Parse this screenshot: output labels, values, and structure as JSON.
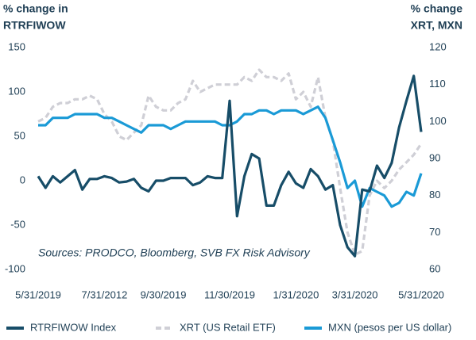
{
  "chart_data": {
    "type": "line",
    "y_label": [
      "% change in",
      "RTRFIWOW"
    ],
    "y2_label": [
      "% change",
      "XRT, MXN"
    ],
    "annotation": "Sources: PRODCO, Bloomberg, SVB FX Risk Advisory",
    "categories": [
      "5/31/2019",
      null,
      null,
      null,
      null,
      null,
      null,
      null,
      null,
      "7/31/2012",
      null,
      null,
      null,
      null,
      null,
      null,
      null,
      "9/30/2019",
      null,
      null,
      null,
      null,
      null,
      null,
      null,
      null,
      "11/30/2019",
      null,
      null,
      null,
      null,
      null,
      null,
      null,
      null,
      "1/31/2020",
      null,
      null,
      null,
      null,
      null,
      null,
      null,
      "3/31/2020",
      null,
      null,
      null,
      null,
      null,
      null,
      null,
      null,
      "5/31/2020"
    ],
    "ylim": [
      -100,
      150
    ],
    "yticks": [
      150,
      100,
      50,
      0,
      -50,
      -100
    ],
    "y2lim": [
      60,
      120
    ],
    "y2ticks": [
      120,
      110,
      100,
      90,
      80,
      70,
      60
    ],
    "series": [
      {
        "name": "RTRFIWOW Index",
        "color": "#174d68",
        "dash": false,
        "values": [
          5,
          -8,
          5,
          -2,
          5,
          12,
          -10,
          2,
          2,
          5,
          3,
          -2,
          -1,
          2,
          -8,
          -12,
          0,
          0,
          3,
          3,
          3,
          -5,
          -2,
          5,
          3,
          3,
          90,
          -40,
          5,
          30,
          25,
          -28,
          -28,
          -5,
          10,
          -3,
          -8,
          13,
          5,
          -10,
          -5,
          -50,
          -75,
          -85,
          -10,
          -12,
          17,
          3,
          20,
          60,
          90,
          118,
          55
        ]
      },
      {
        "name": "XRT (US Retail ETF)",
        "color": "#cfcfd6",
        "dash": true,
        "axis": "y2",
        "values": [
          100,
          101,
          104,
          105,
          105,
          106,
          106,
          107,
          106,
          102,
          100,
          96,
          95,
          97,
          99,
          107,
          104,
          103,
          103,
          105,
          106,
          111,
          108,
          109,
          110,
          110,
          110,
          110,
          112,
          111,
          114,
          112,
          112,
          111,
          113,
          106,
          108,
          104,
          112,
          101,
          95,
          82,
          70,
          64,
          65,
          80,
          84,
          82,
          84,
          87,
          89,
          91,
          94
        ]
      },
      {
        "name": "MXN (pesos per US dollar)",
        "color": "#1a9ad6",
        "dash": false,
        "axis": "y2",
        "values": [
          99,
          99,
          101,
          101,
          101,
          102,
          102,
          102,
          102,
          101,
          101,
          100,
          99,
          98,
          97,
          99,
          99,
          99,
          98,
          99,
          100,
          100,
          100,
          100,
          100,
          99,
          99,
          100,
          102,
          102,
          103,
          103,
          102,
          103,
          103,
          103,
          102,
          103,
          104,
          101,
          95,
          89,
          82,
          84,
          77,
          82,
          81,
          80,
          77,
          78,
          81,
          80,
          86
        ]
      }
    ]
  }
}
